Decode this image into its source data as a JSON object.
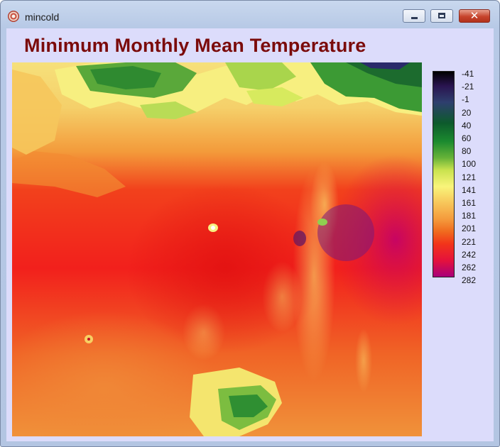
{
  "window": {
    "title": "mincold",
    "app_icon": "app-icon",
    "controls": {
      "minimize": "minimize-icon",
      "maximize": "restore-icon",
      "close": "close-icon",
      "close_glyph": "✕"
    }
  },
  "plot": {
    "title": "Minimum Monthly Mean Temperature"
  },
  "colorbar": {
    "labels": [
      "-41",
      "-21",
      "-1",
      "20",
      "40",
      "60",
      "80",
      "100",
      "121",
      "141",
      "161",
      "181",
      "201",
      "221",
      "242",
      "262",
      "282"
    ]
  }
}
